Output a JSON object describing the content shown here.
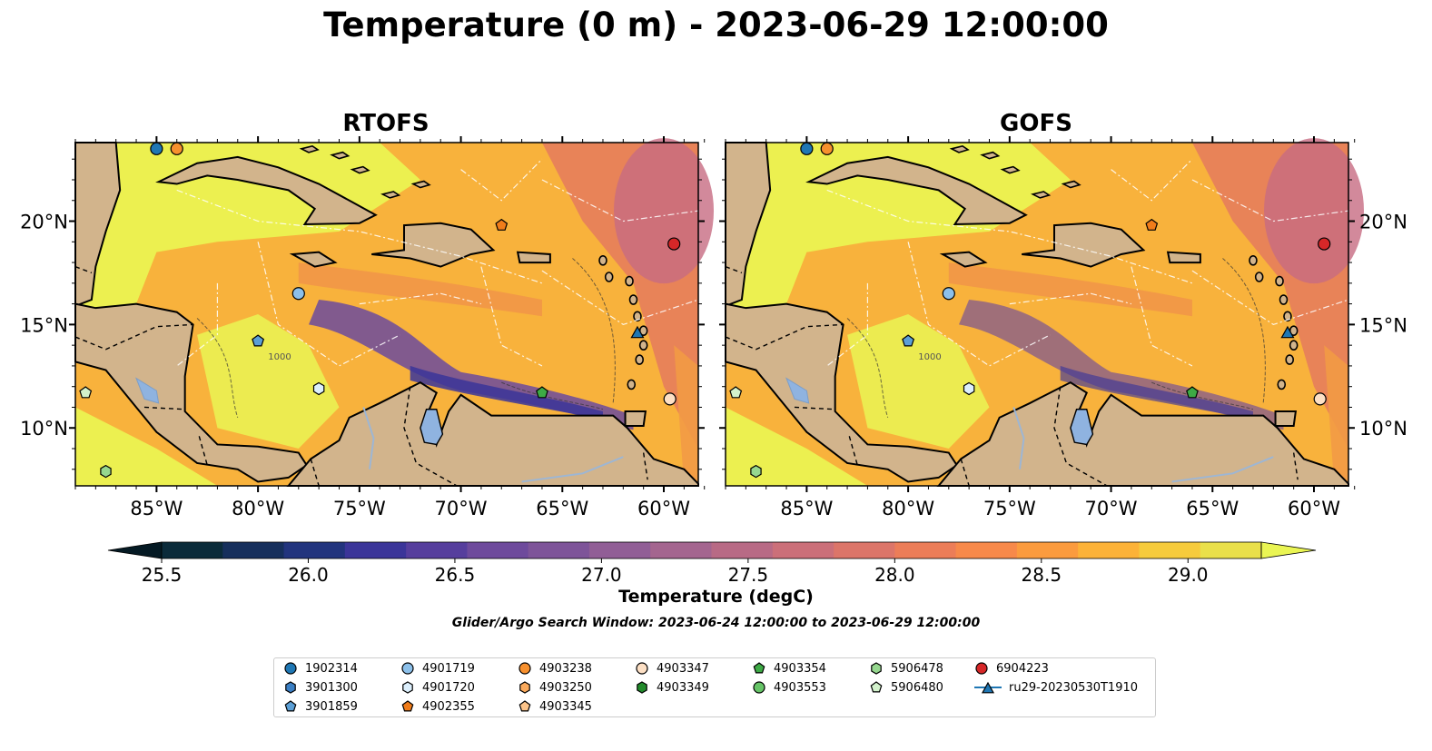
{
  "title": "Temperature (0 m) - 2023-06-29 12:00:00",
  "panels": [
    {
      "title": "RTOFS"
    },
    {
      "title": "GOFS"
    }
  ],
  "map": {
    "lon_ticks": [
      "85°W",
      "80°W",
      "75°W",
      "70°W",
      "65°W",
      "60°W"
    ],
    "lat_ticks": [
      "20°N",
      "15°N",
      "10°N"
    ],
    "contour_label": "1000",
    "land_color": "#d2b48c",
    "lake_color": "#8fb3e0"
  },
  "colorbar": {
    "label": "Temperature (degC)",
    "ticks": [
      "25.5",
      "26.0",
      "26.5",
      "27.0",
      "27.5",
      "28.0",
      "28.5",
      "29.0"
    ],
    "colors": [
      "#0b2b3a",
      "#162f5c",
      "#22347e",
      "#3b3599",
      "#563e9d",
      "#6e4a9c",
      "#7e5499",
      "#915e96",
      "#a4658f",
      "#b86a85",
      "#cb6f79",
      "#dc7569",
      "#ec7d58",
      "#f7894a",
      "#fb9b3e",
      "#fcb238",
      "#f6cb3c",
      "#eae04a"
    ],
    "under_color": "#051a24",
    "over_color": "#eaf553"
  },
  "search_window": "Glider/Argo Search Window: 2023-06-24 12:00:00 to 2023-06-29 12:00:00",
  "legend": [
    {
      "label": "1902314",
      "marker": "circle",
      "color": "#1f77b4"
    },
    {
      "label": "3901300",
      "marker": "hexagon",
      "color": "#3b7fc4"
    },
    {
      "label": "3901859",
      "marker": "pentagon",
      "color": "#5b9fd6"
    },
    {
      "label": "4901719",
      "marker": "circle",
      "color": "#8cc0ea"
    },
    {
      "label": "4901720",
      "marker": "hexagon",
      "color": "#dceffc"
    },
    {
      "label": "4902355",
      "marker": "pentagon",
      "color": "#f07c1a"
    },
    {
      "label": "4903238",
      "marker": "circle",
      "color": "#f7902e"
    },
    {
      "label": "4903250",
      "marker": "hexagon",
      "color": "#fbaa5c"
    },
    {
      "label": "4903345",
      "marker": "pentagon",
      "color": "#fcc48a"
    },
    {
      "label": "4903347",
      "marker": "circle",
      "color": "#fde0c5"
    },
    {
      "label": "4903349",
      "marker": "hexagon",
      "color": "#238b2c"
    },
    {
      "label": "4903354",
      "marker": "pentagon",
      "color": "#3daa45"
    },
    {
      "label": "4903553",
      "marker": "circle",
      "color": "#66c467"
    },
    {
      "label": "5906478",
      "marker": "hexagon",
      "color": "#96d88f"
    },
    {
      "label": "5906480",
      "marker": "pentagon",
      "color": "#d3f2cc"
    },
    {
      "label": "6904223",
      "marker": "circle",
      "color": "#d62728"
    },
    {
      "label": "ru29-20230530T1910",
      "marker": "triangle-line",
      "color": "#1f77b4"
    }
  ],
  "markers": [
    {
      "id": "1902314",
      "lon": -85.0,
      "lat": 23.5
    },
    {
      "id": "4903238",
      "lon": -84.0,
      "lat": 23.5
    },
    {
      "id": "4902355",
      "lon": -68.0,
      "lat": 19.8
    },
    {
      "id": "6904223",
      "lon": -59.5,
      "lat": 18.9
    },
    {
      "id": "4901719",
      "lon": -78.0,
      "lat": 16.5
    },
    {
      "id": "3901859",
      "lon": -80.0,
      "lat": 14.2
    },
    {
      "id": "4901720",
      "lon": -77.0,
      "lat": 11.9
    },
    {
      "id": "4903354",
      "lon": -66.0,
      "lat": 11.7
    },
    {
      "id": "4903347",
      "lon": -59.7,
      "lat": 11.4
    },
    {
      "id": "5906480",
      "lon": -88.5,
      "lat": 11.7
    },
    {
      "id": "5906478",
      "lon": -87.5,
      "lat": 7.9
    },
    {
      "id": "ru29-20230530T1910",
      "lon": -61.3,
      "lat": 14.6
    }
  ]
}
